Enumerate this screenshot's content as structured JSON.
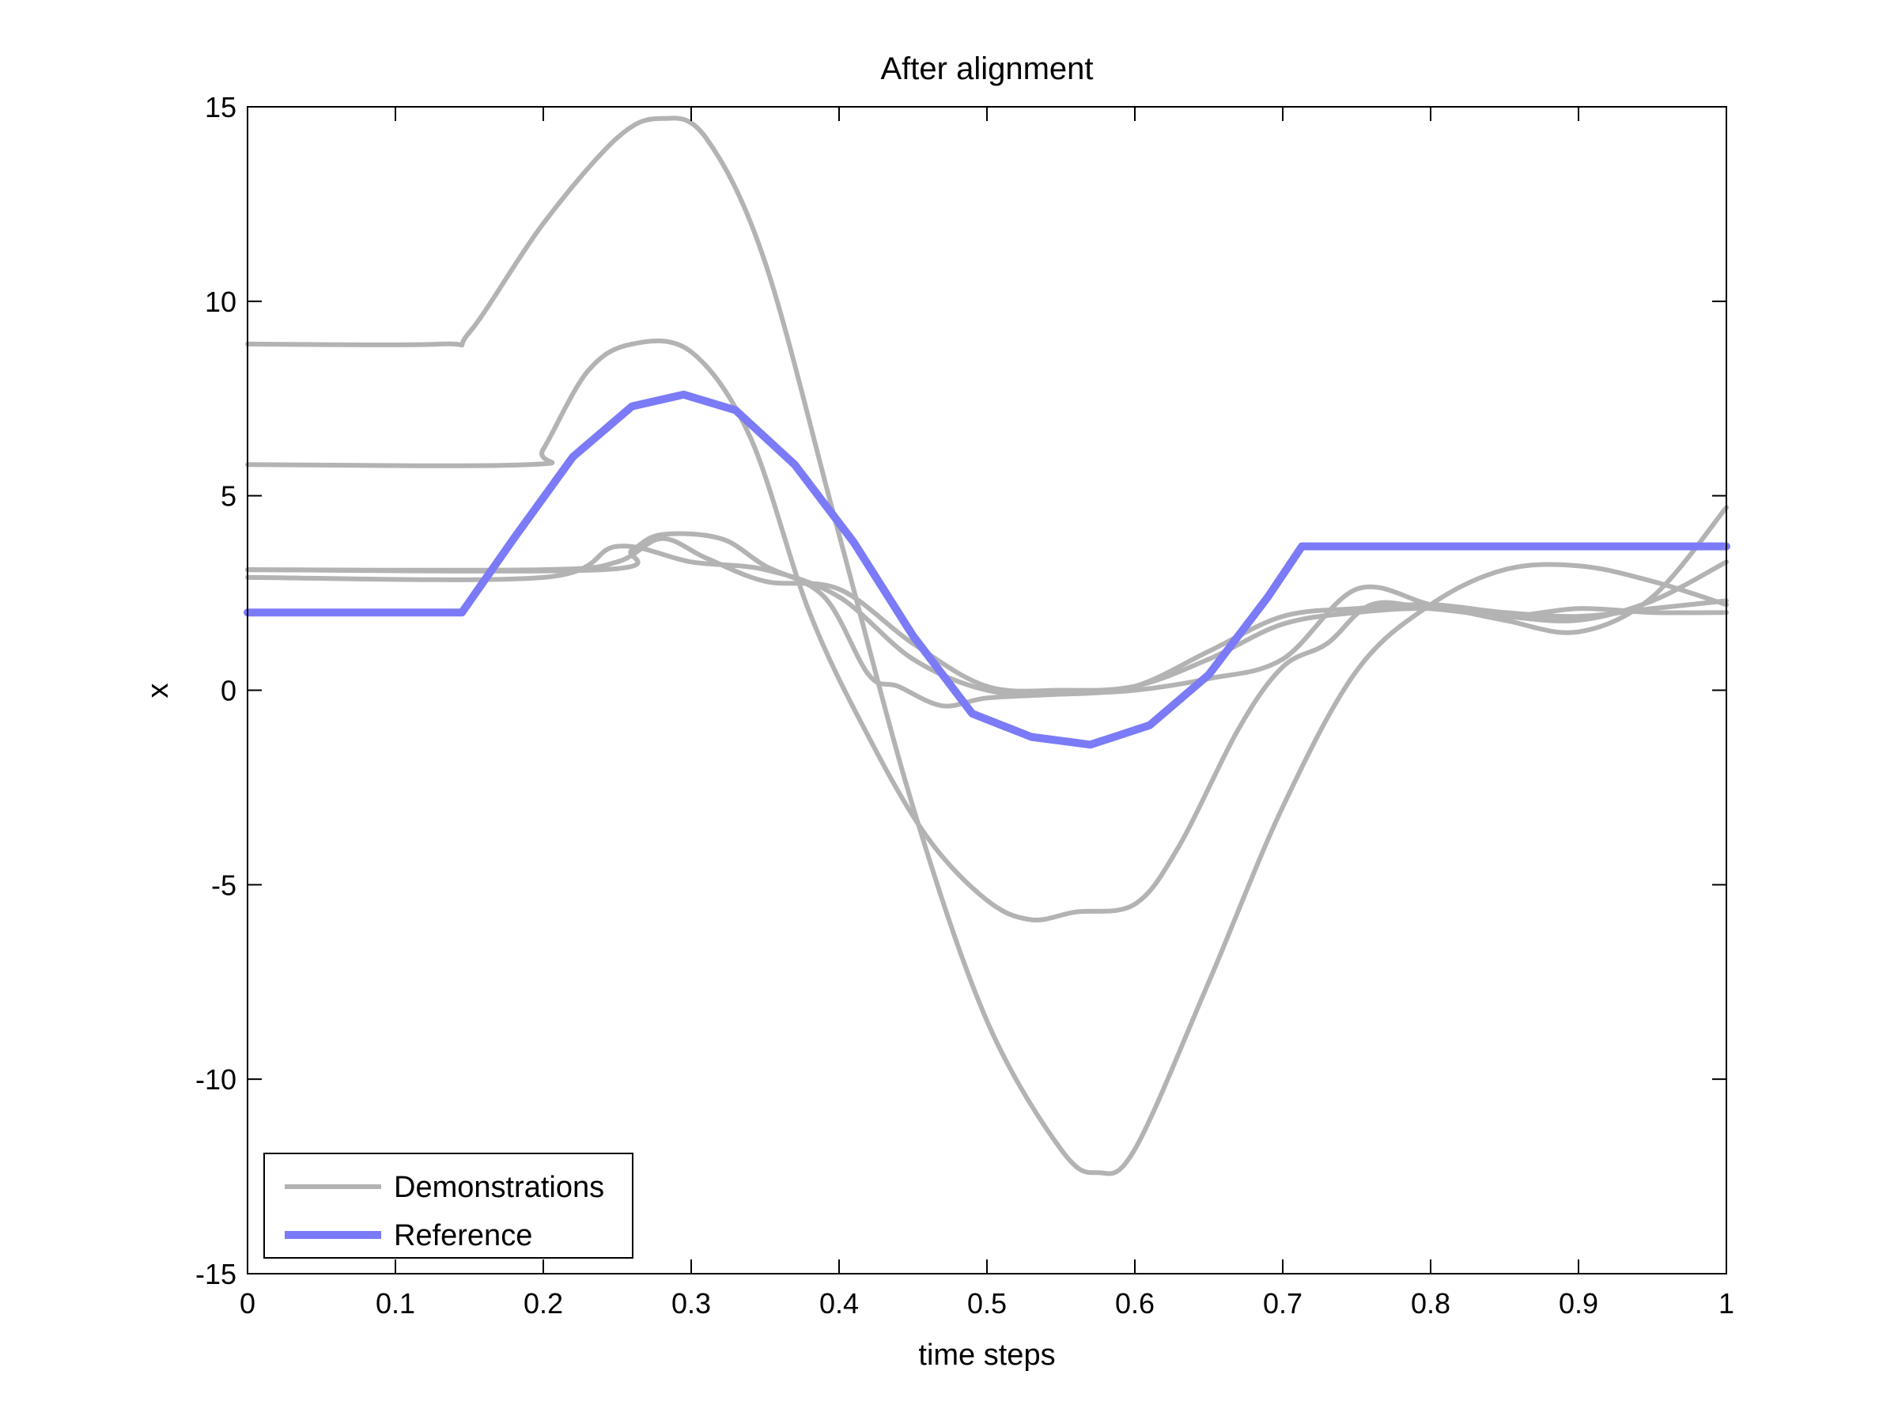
{
  "chart_data": {
    "type": "line",
    "title": "After alignment",
    "xlabel": "time steps",
    "ylabel": "x",
    "xlim": [
      0,
      1
    ],
    "ylim": [
      -15,
      15
    ],
    "xticks": [
      "0",
      "0.1",
      "0.2",
      "0.3",
      "0.4",
      "0.5",
      "0.6",
      "0.7",
      "0.8",
      "0.9",
      "1"
    ],
    "yticks": [
      "-15",
      "-10",
      "-5",
      "0",
      "5",
      "10",
      "15"
    ],
    "grid": false,
    "legend": {
      "position": "bottom-left",
      "entries": [
        {
          "label": "Demonstrations",
          "color": "#b3b3b3"
        },
        {
          "label": "Reference",
          "color": "#7b7bf7"
        }
      ]
    },
    "series": [
      {
        "name": "Demonstrations",
        "color": "#b3b3b3",
        "x": [
          0,
          0.13,
          0.15,
          0.2,
          0.25,
          0.28,
          0.31,
          0.35,
          0.4,
          0.45,
          0.5,
          0.55,
          0.575,
          0.6,
          0.65,
          0.7,
          0.75,
          0.8,
          0.85,
          0.9,
          0.95,
          1
        ],
        "y": [
          8.9,
          8.9,
          9.2,
          12.0,
          14.2,
          14.7,
          14.2,
          11.0,
          4.0,
          -3.0,
          -8.5,
          -11.8,
          -12.4,
          -11.8,
          -7.5,
          -3.0,
          0.5,
          2.2,
          3.1,
          3.2,
          2.8,
          2.2
        ]
      },
      {
        "name": "Demonstrations",
        "color": "#b3b3b3",
        "x": [
          0,
          0.19,
          0.2,
          0.23,
          0.26,
          0.3,
          0.34,
          0.38,
          0.42,
          0.46,
          0.5,
          0.53,
          0.56,
          0.6,
          0.63,
          0.67,
          0.7,
          0.73,
          0.76,
          0.8,
          0.85,
          0.9,
          0.95,
          1
        ],
        "y": [
          5.8,
          5.8,
          6.2,
          8.2,
          8.9,
          8.7,
          6.5,
          2.0,
          -1.2,
          -3.8,
          -5.4,
          -5.9,
          -5.7,
          -5.5,
          -4.0,
          -1.0,
          0.6,
          1.2,
          2.2,
          2.1,
          1.9,
          1.8,
          2.3,
          3.3
        ]
      },
      {
        "name": "Demonstrations",
        "color": "#b3b3b3",
        "x": [
          0,
          0.24,
          0.26,
          0.28,
          0.32,
          0.35,
          0.39,
          0.42,
          0.44,
          0.47,
          0.5,
          0.55,
          0.6,
          0.65,
          0.7,
          0.75,
          0.8,
          0.85,
          0.9,
          0.95,
          1
        ],
        "y": [
          3.1,
          3.1,
          3.6,
          4.0,
          3.9,
          3.2,
          2.4,
          0.4,
          0.1,
          -0.4,
          -0.2,
          -0.1,
          0.0,
          0.3,
          0.8,
          2.6,
          2.2,
          1.8,
          1.5,
          2.4,
          4.7
        ]
      },
      {
        "name": "Demonstrations",
        "color": "#b3b3b3",
        "x": [
          0,
          0.2,
          0.25,
          0.3,
          0.35,
          0.4,
          0.45,
          0.5,
          0.55,
          0.6,
          0.65,
          0.7,
          0.75,
          0.8,
          0.85,
          0.9,
          0.95,
          1
        ],
        "y": [
          2.9,
          2.9,
          3.7,
          3.3,
          3.1,
          2.4,
          0.8,
          0.0,
          -0.1,
          0.1,
          1.0,
          1.9,
          2.1,
          2.2,
          2.0,
          1.9,
          2.1,
          2.3
        ]
      },
      {
        "name": "Demonstrations",
        "color": "#b3b3b3",
        "x": [
          0,
          0.2,
          0.25,
          0.28,
          0.31,
          0.35,
          0.4,
          0.45,
          0.5,
          0.55,
          0.6,
          0.65,
          0.7,
          0.75,
          0.8,
          0.85,
          0.9,
          0.95,
          1
        ],
        "y": [
          3.1,
          3.1,
          3.3,
          3.9,
          3.4,
          2.8,
          2.6,
          1.2,
          0.1,
          0.0,
          0.1,
          0.8,
          1.7,
          2.0,
          2.1,
          1.9,
          2.1,
          2.0,
          2.0
        ]
      },
      {
        "name": "Reference",
        "color": "#7b7bf7",
        "x": [
          0,
          0.145,
          0.18,
          0.22,
          0.26,
          0.295,
          0.33,
          0.37,
          0.41,
          0.45,
          0.49,
          0.53,
          0.57,
          0.61,
          0.65,
          0.69,
          0.713,
          1
        ],
        "y": [
          2.0,
          2.0,
          3.9,
          6.0,
          7.3,
          7.6,
          7.2,
          5.8,
          3.8,
          1.4,
          -0.6,
          -1.2,
          -1.4,
          -0.9,
          0.4,
          2.4,
          3.7,
          3.7
        ]
      }
    ]
  }
}
